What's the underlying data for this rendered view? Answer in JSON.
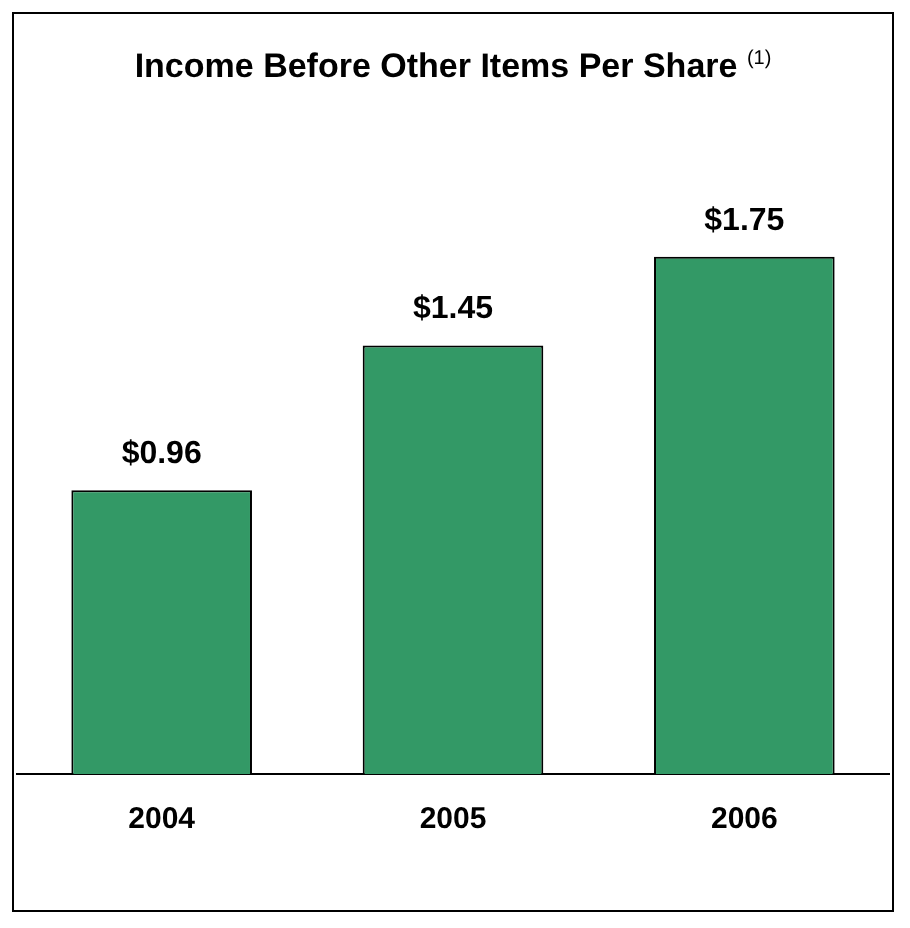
{
  "chart_data": {
    "type": "bar",
    "title": "Income Before Other Items Per Share $^{(1)}$",
    "categories": [
      "2004",
      "2005",
      "2006"
    ],
    "values": [
      0.96,
      1.45,
      1.75
    ],
    "value_labels": [
      "$0.96",
      "$1.45",
      "$1.75"
    ],
    "color": "#339966",
    "grid": false,
    "legend": false
  }
}
